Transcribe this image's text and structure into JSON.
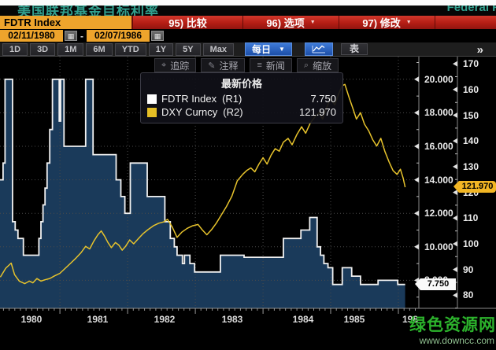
{
  "window": {
    "top_title_cn": "美国联邦基金目标利率",
    "top_title_right": "Federal R"
  },
  "command_bar": {
    "ticker": "FDTR Index",
    "menu_items": [
      {
        "label": "95) 比较",
        "caret": false
      },
      {
        "label": "96) 选项",
        "caret": true
      },
      {
        "label": "97) 修改",
        "caret": true
      }
    ]
  },
  "date_range": {
    "start": "02/11/1980",
    "separator": "-",
    "end": "02/07/1986"
  },
  "toolbar": {
    "periods": [
      "1D",
      "3D",
      "1M",
      "6M",
      "YTD",
      "1Y",
      "5Y",
      "Max"
    ],
    "frequency": "每日",
    "table_label": "表",
    "more": "»"
  },
  "chart_toolbar": [
    {
      "icon": "crosshair-icon",
      "glyph": "⌖",
      "label": "追踪"
    },
    {
      "icon": "pencil-icon",
      "glyph": "✎",
      "label": "注释"
    },
    {
      "icon": "news-icon",
      "glyph": "≡",
      "label": "新闻"
    },
    {
      "icon": "magnifier-icon",
      "glyph": "⌕",
      "label": "缩放"
    }
  ],
  "legend": {
    "title": "最新价格",
    "rows": [
      {
        "swatch": "#ffffff",
        "label": "FDTR Index",
        "axis": "(R1)",
        "value": "7.750"
      },
      {
        "swatch": "#e6bf25",
        "label": "DXY Curncy",
        "axis": "(R2)",
        "value": "121.970"
      }
    ]
  },
  "badges": {
    "r1_label": "7.750",
    "r1_value": 7.75,
    "r2_label": "121.970",
    "r2_value": 121.97
  },
  "watermark": {
    "line1": "绿色资源网",
    "line2": "www.downcc.com"
  },
  "chart_data": {
    "type": "line",
    "title": "FDTR Index vs DXY Curncy, 02/11/1980 - 02/07/1986, daily",
    "grid": true,
    "legend_position": "top-left",
    "axes": {
      "r1": {
        "side": "right-inner",
        "label_format": "3dp",
        "ticks": [
          20,
          18,
          16,
          14,
          12,
          10,
          8
        ],
        "tick_labels": [
          "20.000",
          "18.000",
          "16.000",
          "14.000",
          "12.000",
          "10.000",
          "8.000"
        ],
        "min": 6.33,
        "max": 21.35
      },
      "r2": {
        "side": "right-outer",
        "ticks": [
          170,
          160,
          150,
          140,
          130,
          120,
          110,
          100,
          90,
          80
        ],
        "min": 74.9,
        "max": 172.8
      },
      "x": {
        "min": 1980.115,
        "max": 1986.302,
        "data_end": 1986.1,
        "year_lines": [
          1981,
          1982,
          1983,
          1984,
          1985,
          1986
        ],
        "year_labels": [
          "1980",
          "1981",
          "1982",
          "1983",
          "1984",
          "1985",
          "198"
        ],
        "year_label_t": [
          1980.58,
          1981.56,
          1982.55,
          1983.55,
          1984.59,
          1985.35,
          1986.17
        ]
      }
    },
    "series": [
      {
        "name": "FDTR Index",
        "axis": "R1",
        "style": "step-area",
        "color": "#f2f2f2",
        "fill": "#1a3a5a",
        "last_value": 7.75,
        "points": [
          [
            1980.12,
            14
          ],
          [
            1980.16,
            15
          ],
          [
            1980.19,
            20
          ],
          [
            1980.3,
            11.5
          ],
          [
            1980.34,
            11
          ],
          [
            1980.38,
            10.5
          ],
          [
            1980.46,
            9.5
          ],
          [
            1980.69,
            10.5
          ],
          [
            1980.72,
            11.5
          ],
          [
            1980.75,
            12.5
          ],
          [
            1980.78,
            13.5
          ],
          [
            1980.81,
            15
          ],
          [
            1980.85,
            17
          ],
          [
            1980.89,
            20
          ],
          [
            1980.99,
            17.5
          ],
          [
            1981.01,
            20
          ],
          [
            1981.06,
            16
          ],
          [
            1981.38,
            20
          ],
          [
            1981.49,
            15.5
          ],
          [
            1981.83,
            14
          ],
          [
            1981.9,
            13
          ],
          [
            1981.96,
            12
          ],
          [
            1982.04,
            15
          ],
          [
            1982.29,
            13
          ],
          [
            1982.55,
            11.5
          ],
          [
            1982.63,
            10.5
          ],
          [
            1982.69,
            10
          ],
          [
            1982.73,
            9.5
          ],
          [
            1982.81,
            9
          ],
          [
            1982.84,
            9.5
          ],
          [
            1982.92,
            9
          ],
          [
            1982.99,
            8.5
          ],
          [
            1983.37,
            9.5
          ],
          [
            1983.72,
            9.375
          ],
          [
            1984.3,
            10.5
          ],
          [
            1984.56,
            11
          ],
          [
            1984.69,
            11.75
          ],
          [
            1984.8,
            10
          ],
          [
            1984.85,
            9.5
          ],
          [
            1984.9,
            9
          ],
          [
            1984.96,
            8.75
          ],
          [
            1985.03,
            7.75
          ],
          [
            1985.17,
            8.75
          ],
          [
            1985.31,
            8.25
          ],
          [
            1985.44,
            7.75
          ],
          [
            1985.7,
            8
          ],
          [
            1985.99,
            7.75
          ]
        ]
      },
      {
        "name": "DXY Curncy",
        "axis": "R2",
        "style": "line",
        "color": "#e7c32c",
        "last_value": 121.97,
        "points": [
          [
            1980.12,
            87
          ],
          [
            1980.2,
            90.5
          ],
          [
            1980.28,
            92.5
          ],
          [
            1980.33,
            88
          ],
          [
            1980.4,
            85.5
          ],
          [
            1980.48,
            84.5
          ],
          [
            1980.55,
            85.5
          ],
          [
            1980.6,
            84.8
          ],
          [
            1980.66,
            86.5
          ],
          [
            1980.72,
            85.5
          ],
          [
            1980.78,
            86
          ],
          [
            1980.85,
            86.5
          ],
          [
            1980.92,
            87.5
          ],
          [
            1981.0,
            88.5
          ],
          [
            1981.08,
            90.5
          ],
          [
            1981.16,
            92.5
          ],
          [
            1981.24,
            94.5
          ],
          [
            1981.31,
            96.5
          ],
          [
            1981.38,
            99
          ],
          [
            1981.44,
            98
          ],
          [
            1981.5,
            101
          ],
          [
            1981.56,
            103.5
          ],
          [
            1981.61,
            105
          ],
          [
            1981.66,
            103
          ],
          [
            1981.71,
            100.5
          ],
          [
            1981.76,
            98.5
          ],
          [
            1981.82,
            100.5
          ],
          [
            1981.87,
            99.5
          ],
          [
            1981.92,
            97.5
          ],
          [
            1981.97,
            99
          ],
          [
            1982.03,
            101.5
          ],
          [
            1982.09,
            100
          ],
          [
            1982.16,
            102
          ],
          [
            1982.23,
            104
          ],
          [
            1982.3,
            105.5
          ],
          [
            1982.38,
            107
          ],
          [
            1982.46,
            108
          ],
          [
            1982.53,
            108.5
          ],
          [
            1982.59,
            109.5
          ],
          [
            1982.66,
            106.5
          ],
          [
            1982.73,
            102.5
          ],
          [
            1982.8,
            104.5
          ],
          [
            1982.88,
            106
          ],
          [
            1982.96,
            107
          ],
          [
            1983.04,
            107.5
          ],
          [
            1983.1,
            105.5
          ],
          [
            1983.17,
            103.5
          ],
          [
            1983.24,
            105.5
          ],
          [
            1983.31,
            108
          ],
          [
            1983.38,
            111
          ],
          [
            1983.46,
            114.5
          ],
          [
            1983.54,
            118.5
          ],
          [
            1983.62,
            124.5
          ],
          [
            1983.7,
            127
          ],
          [
            1983.76,
            128.5
          ],
          [
            1983.82,
            129.5
          ],
          [
            1983.88,
            128
          ],
          [
            1983.94,
            131
          ],
          [
            1984.0,
            133.5
          ],
          [
            1984.06,
            131
          ],
          [
            1984.12,
            134.5
          ],
          [
            1984.18,
            137
          ],
          [
            1984.24,
            136
          ],
          [
            1984.3,
            139.5
          ],
          [
            1984.37,
            141
          ],
          [
            1984.43,
            138.5
          ],
          [
            1984.5,
            142.5
          ],
          [
            1984.57,
            145.5
          ],
          [
            1984.63,
            143
          ],
          [
            1984.7,
            147
          ],
          [
            1984.77,
            149.5
          ],
          [
            1984.83,
            151
          ],
          [
            1984.88,
            148.5
          ],
          [
            1984.94,
            153
          ],
          [
            1985.0,
            156.5
          ],
          [
            1985.06,
            154
          ],
          [
            1985.12,
            158.5
          ],
          [
            1985.17,
            161.5
          ],
          [
            1985.21,
            162
          ],
          [
            1985.27,
            157
          ],
          [
            1985.33,
            152.5
          ],
          [
            1985.38,
            148.5
          ],
          [
            1985.44,
            151
          ],
          [
            1985.5,
            146.5
          ],
          [
            1985.56,
            144
          ],
          [
            1985.62,
            140.5
          ],
          [
            1985.68,
            138
          ],
          [
            1985.74,
            141
          ],
          [
            1985.8,
            136
          ],
          [
            1985.86,
            132
          ],
          [
            1985.92,
            128.5
          ],
          [
            1985.98,
            127
          ],
          [
            1986.03,
            129
          ],
          [
            1986.07,
            125.5
          ],
          [
            1986.1,
            122
          ]
        ]
      }
    ]
  }
}
